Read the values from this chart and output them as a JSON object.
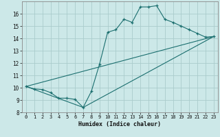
{
  "title": "",
  "xlabel": "Humidex (Indice chaleur)",
  "bg_color": "#cce8e8",
  "grid_color": "#aacccc",
  "line_color": "#1a6e6e",
  "xlim": [
    -0.5,
    23.5
  ],
  "ylim": [
    8,
    17
  ],
  "yticks": [
    8,
    9,
    10,
    11,
    12,
    13,
    14,
    15,
    16
  ],
  "xticks": [
    0,
    1,
    2,
    3,
    4,
    5,
    6,
    7,
    8,
    9,
    10,
    11,
    12,
    13,
    14,
    15,
    16,
    17,
    18,
    19,
    20,
    21,
    22,
    23
  ],
  "curve1_x": [
    0,
    1,
    2,
    3,
    4,
    5,
    6,
    7,
    8,
    9,
    10,
    11,
    12,
    13,
    14,
    15,
    16,
    17,
    18,
    19,
    20,
    21,
    22,
    23
  ],
  "curve1_y": [
    10.1,
    9.9,
    9.85,
    9.6,
    9.15,
    9.15,
    9.05,
    8.4,
    9.7,
    11.9,
    14.5,
    14.7,
    15.55,
    15.3,
    16.55,
    16.55,
    16.65,
    15.55,
    15.3,
    15.0,
    14.7,
    14.4,
    14.1,
    14.15
  ],
  "curve2_x": [
    0,
    23
  ],
  "curve2_y": [
    10.1,
    14.15
  ],
  "curve3_x": [
    0,
    7,
    23
  ],
  "curve3_y": [
    10.1,
    8.4,
    14.15
  ]
}
